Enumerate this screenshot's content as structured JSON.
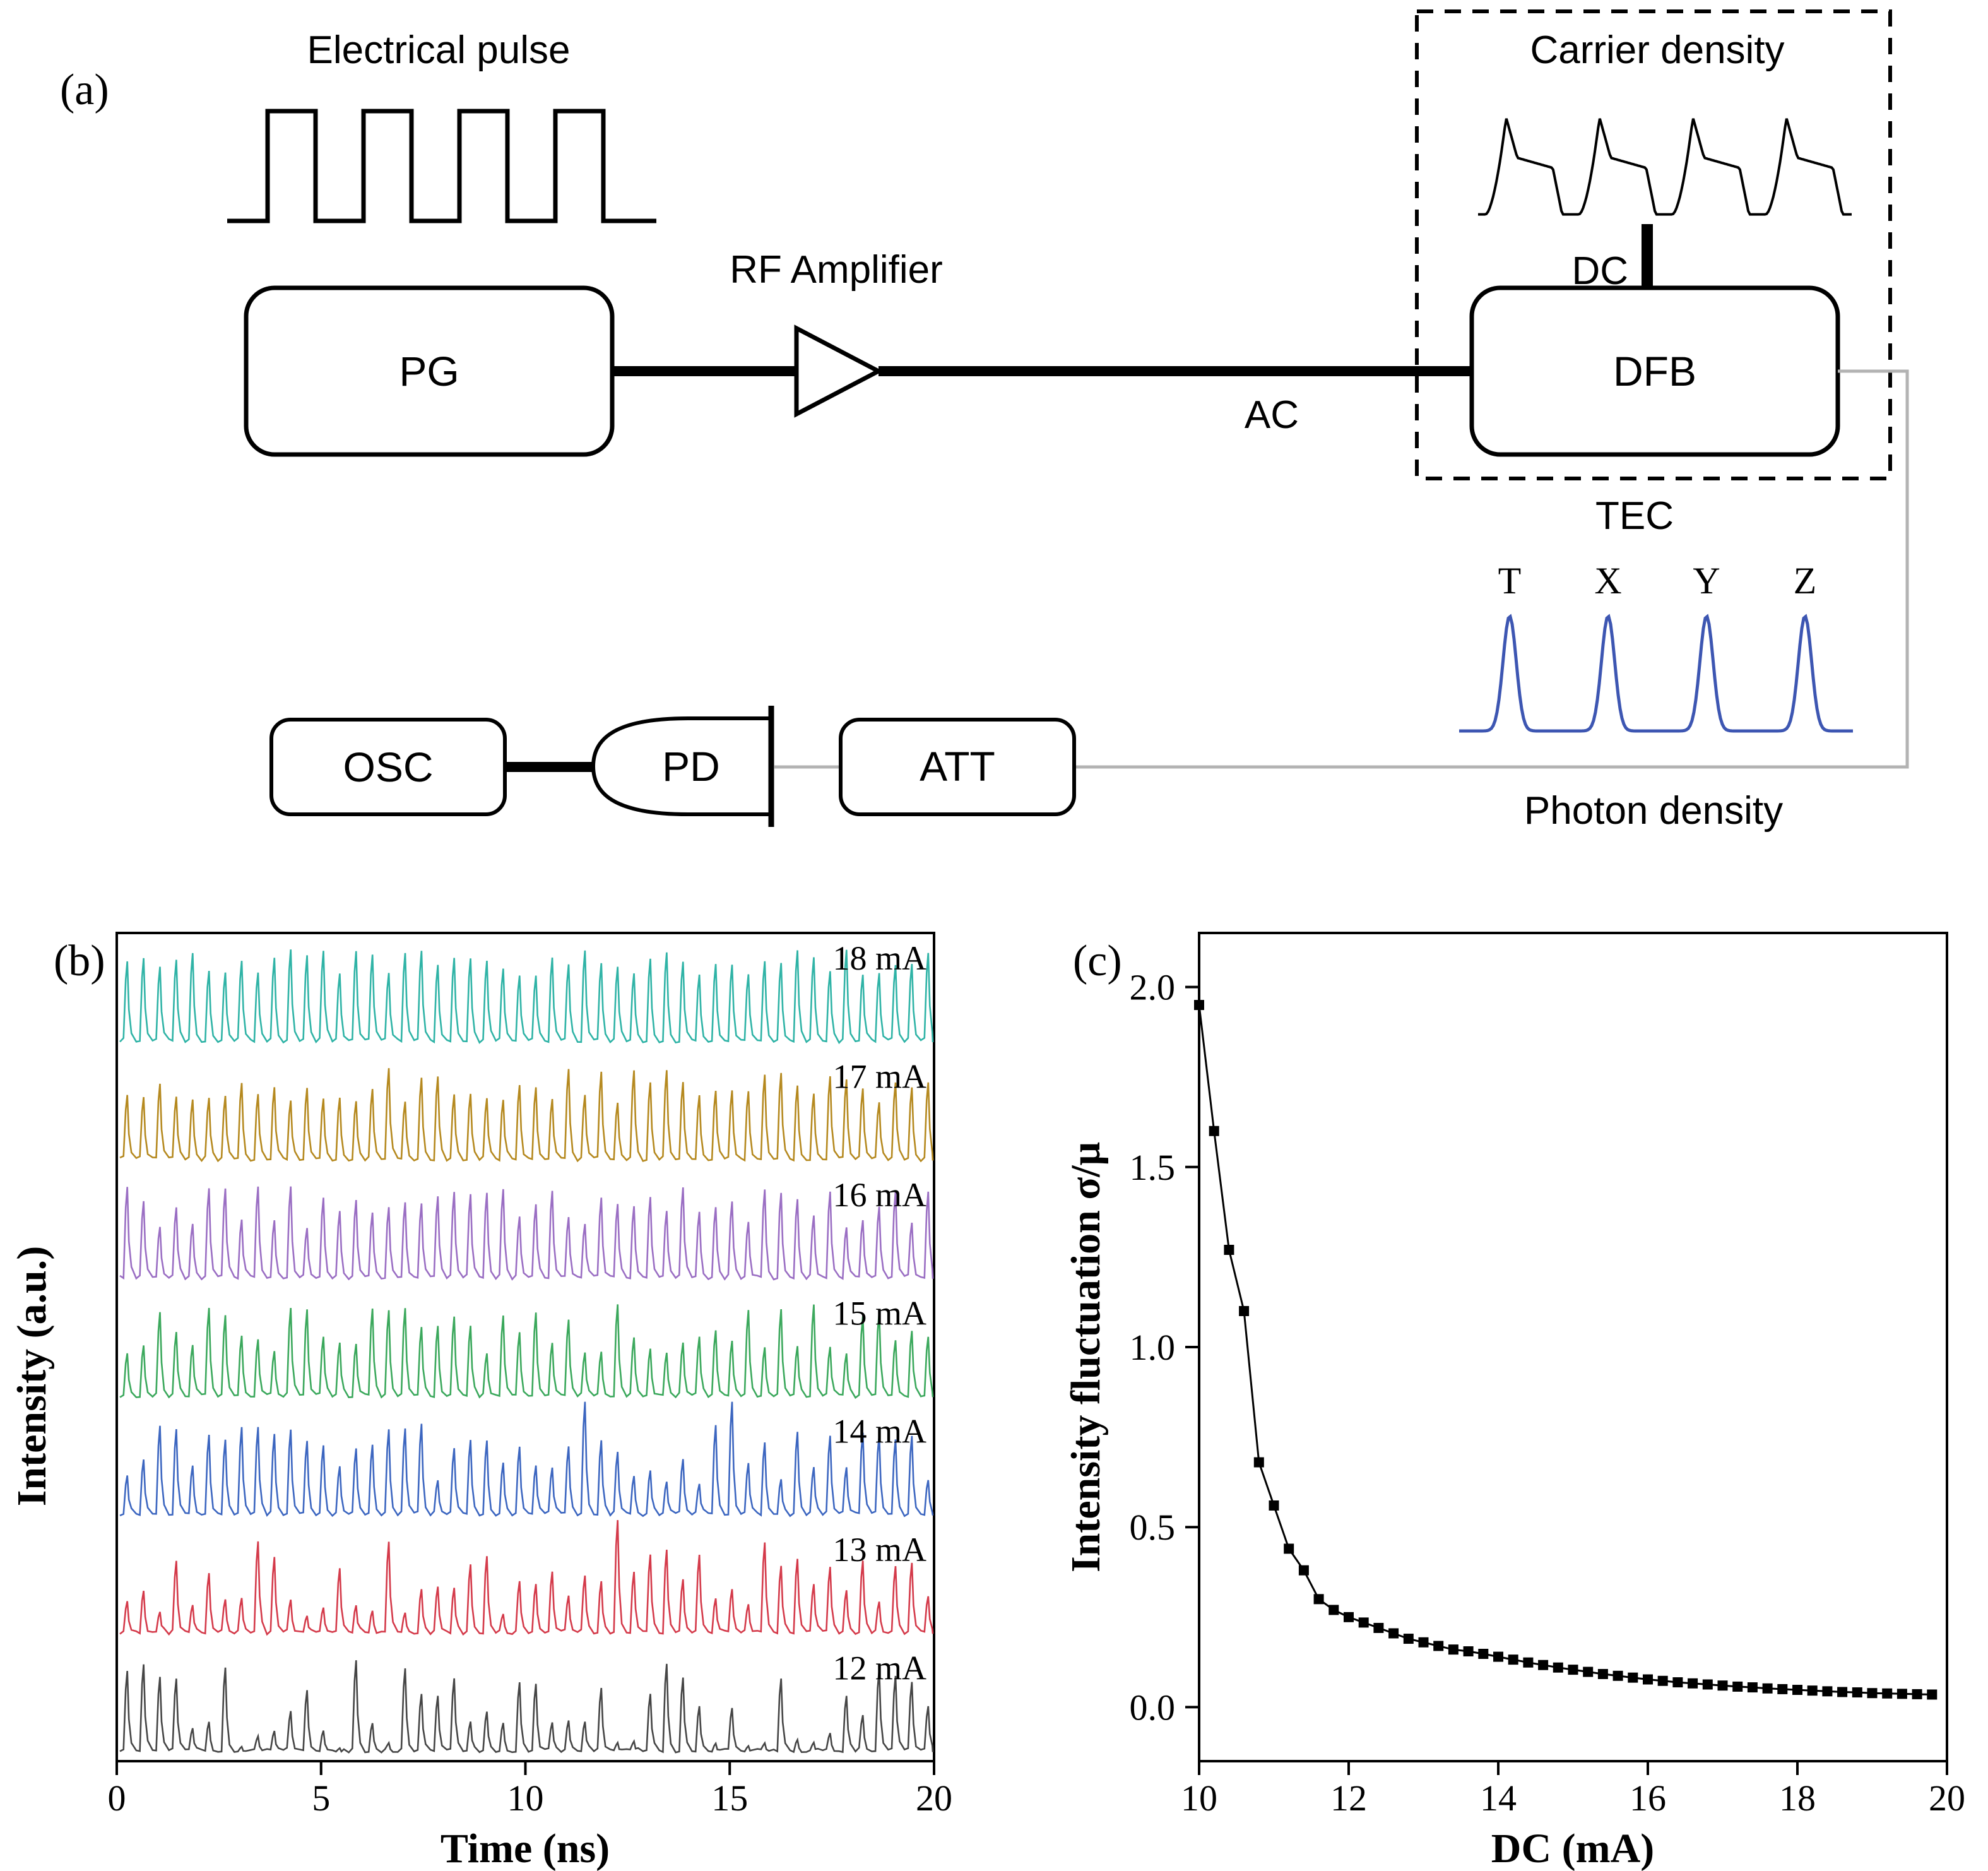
{
  "colors": {
    "photon_pulse": "#3d56b2",
    "fiber_gray": "#b3b3b3",
    "ink": "#000000"
  },
  "panel_a": {
    "tag": "(a)",
    "electrical_pulse_label": "Electrical pulse",
    "rf_amplifier_label": "RF Amplifier",
    "pg_label": "PG",
    "ac_label": "AC",
    "carrier_density_label": "Carrier density",
    "dc_label": "DC",
    "dfb_label": "DFB",
    "tec_label": "TEC",
    "pulse_peak_labels": [
      "T",
      "X",
      "Y",
      "Z"
    ],
    "photon_density_label": "Photon density",
    "osc_label": "OSC",
    "pd_label": "PD",
    "att_label": "ATT"
  },
  "panel_b": {
    "tag": "(b)",
    "xlabel": "Time (ns)",
    "ylabel": "Intensity (a.u.)",
    "xtick_labels": [
      "0",
      "5",
      "10",
      "15",
      "20"
    ]
  },
  "panel_c": {
    "tag": "(c)",
    "xlabel": "DC  (mA)",
    "ylabel": "Intensity fluctuation  σ/μ",
    "xtick_labels": [
      "10",
      "12",
      "14",
      "16",
      "18",
      "20"
    ],
    "ytick_labels": [
      "0.0",
      "0.5",
      "1.0",
      "1.5",
      "2.0"
    ]
  },
  "chart_data": [
    {
      "panel": "b",
      "type": "line",
      "title": "Gain-switched laser pulse trains at different DC bias currents",
      "xlabel": "Time (ns)",
      "ylabel": "Intensity (a.u.)",
      "xlim": [
        0,
        20
      ],
      "xticks": [
        0,
        5,
        10,
        15,
        20
      ],
      "pulses_per_trace": 50,
      "layout": "seven vertically stacked traces, amplitude jitter increases as DC decreases",
      "series": [
        {
          "label": "18 mA",
          "color": "#2fb3a6",
          "amp_min": 0.72
        },
        {
          "label": "17 mA",
          "color": "#b5891f",
          "amp_min": 0.62
        },
        {
          "label": "16 mA",
          "color": "#9a6ec3",
          "amp_min": 0.55
        },
        {
          "label": "15 mA",
          "color": "#3ba85c",
          "amp_min": 0.47
        },
        {
          "label": "14 mA",
          "color": "#3c66c0",
          "amp_min": 0.33
        },
        {
          "label": "13 mA",
          "color": "#d43a4a",
          "amp_min": 0.2
        },
        {
          "label": "12 mA",
          "color": "#454545",
          "amp_min": 0.05
        }
      ]
    },
    {
      "panel": "c",
      "type": "scatter",
      "title": "Intensity fluctuation vs DC bias",
      "xlabel": "DC (mA)",
      "ylabel": "Intensity fluctuation σ/μ",
      "xlim": [
        10,
        20
      ],
      "ylim": [
        -0.15,
        2.15
      ],
      "xticks": [
        10,
        12,
        14,
        16,
        18,
        20
      ],
      "yticks": [
        0,
        0.5,
        1,
        1.5,
        2
      ],
      "marker": "filled-square",
      "connect_line": true,
      "x": [
        10.0,
        10.2,
        10.4,
        10.6,
        10.8,
        11.0,
        11.2,
        11.4,
        11.6,
        11.8,
        12.0,
        12.2,
        12.4,
        12.6,
        12.8,
        13.0,
        13.2,
        13.4,
        13.6,
        13.8,
        14.0,
        14.2,
        14.4,
        14.6,
        14.8,
        15.0,
        15.2,
        15.4,
        15.6,
        15.8,
        16.0,
        16.2,
        16.4,
        16.6,
        16.8,
        17.0,
        17.2,
        17.4,
        17.6,
        17.8,
        18.0,
        18.2,
        18.4,
        18.6,
        18.8,
        19.0,
        19.2,
        19.4,
        19.6,
        19.8
      ],
      "y": [
        1.95,
        1.6,
        1.27,
        1.1,
        0.68,
        0.56,
        0.44,
        0.38,
        0.3,
        0.27,
        0.25,
        0.235,
        0.22,
        0.205,
        0.19,
        0.18,
        0.17,
        0.16,
        0.155,
        0.148,
        0.14,
        0.132,
        0.124,
        0.117,
        0.11,
        0.104,
        0.098,
        0.092,
        0.087,
        0.082,
        0.077,
        0.073,
        0.069,
        0.066,
        0.063,
        0.06,
        0.057,
        0.055,
        0.052,
        0.05,
        0.048,
        0.046,
        0.044,
        0.042,
        0.041,
        0.039,
        0.038,
        0.037,
        0.036,
        0.035
      ]
    }
  ]
}
